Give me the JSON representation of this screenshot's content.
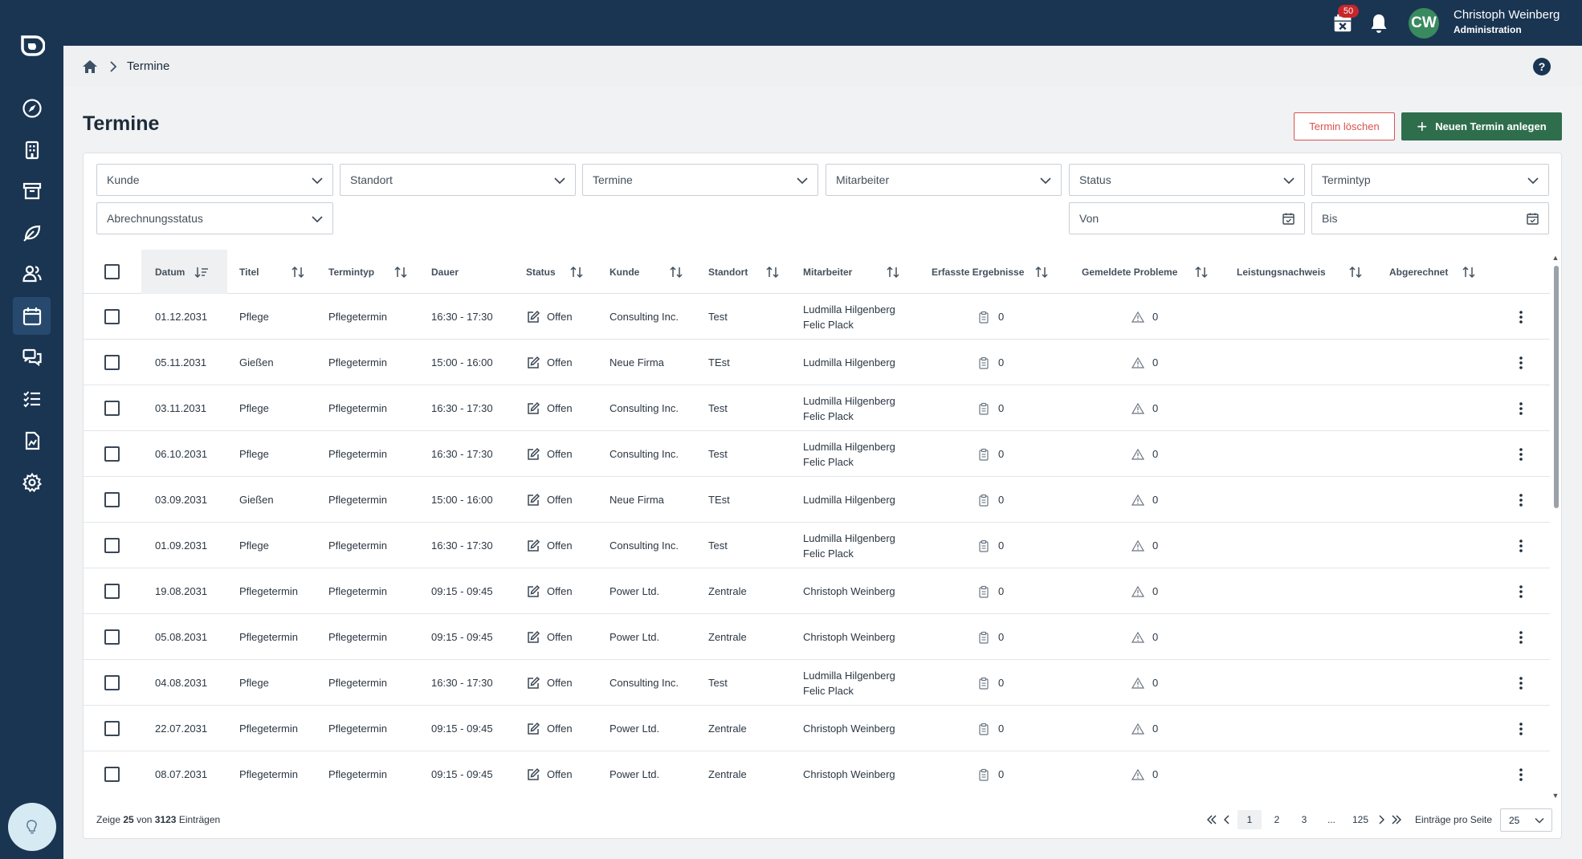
{
  "topbar": {
    "calendar_badge": "50",
    "user_initials": "CW",
    "user_name": "Christoph Weinberg",
    "user_role": "Administration"
  },
  "sidebar": {
    "items": [
      {
        "icon": "compass-icon"
      },
      {
        "icon": "building-icon"
      },
      {
        "icon": "archive-icon"
      },
      {
        "icon": "leaf-icon"
      },
      {
        "icon": "users-icon"
      },
      {
        "icon": "calendar-icon",
        "active": true
      },
      {
        "icon": "chat-icon"
      },
      {
        "icon": "checklist-icon"
      },
      {
        "icon": "document-chart-icon"
      },
      {
        "icon": "settings-icon"
      }
    ]
  },
  "breadcrumb": {
    "current": "Termine"
  },
  "page": {
    "title": "Termine",
    "delete_label": "Termin löschen",
    "new_label": "Neuen Termin anlegen",
    "help": "?"
  },
  "filters": {
    "kunde": "Kunde",
    "standort": "Standort",
    "termine": "Termine",
    "mitarbeiter": "Mitarbeiter",
    "status": "Status",
    "termintyp": "Termintyp",
    "abrechnungsstatus": "Abrechnungsstatus",
    "von": "Von",
    "bis": "Bis"
  },
  "table": {
    "columns": {
      "datum": "Datum",
      "titel": "Titel",
      "termintyp": "Termintyp",
      "dauer": "Dauer",
      "status": "Status",
      "kunde": "Kunde",
      "standort": "Standort",
      "mitarbeiter": "Mitarbeiter",
      "ergebnisse": "Erfasste Ergebnisse",
      "probleme": "Gemeldete Probleme",
      "leistungsnachweis": "Leistungsnachweis",
      "abgerechnet": "Abgerechnet"
    },
    "rows": [
      {
        "datum": "01.12.2031",
        "titel": "Pflege",
        "termintyp": "Pflegetermin",
        "dauer": "16:30 - 17:30",
        "status": "Offen",
        "kunde": "Consulting Inc.",
        "standort": "Test",
        "mitarbeiter1": "Ludmilla Hilgenberg",
        "mitarbeiter2": "Felic Plack",
        "ergebnisse": "0",
        "probleme": "0"
      },
      {
        "datum": "05.11.2031",
        "titel": "Gießen",
        "termintyp": "Pflegetermin",
        "dauer": "15:00 - 16:00",
        "status": "Offen",
        "kunde": "Neue Firma",
        "standort": "TEst",
        "mitarbeiter1": "Ludmilla Hilgenberg",
        "mitarbeiter2": "",
        "ergebnisse": "0",
        "probleme": "0"
      },
      {
        "datum": "03.11.2031",
        "titel": "Pflege",
        "termintyp": "Pflegetermin",
        "dauer": "16:30 - 17:30",
        "status": "Offen",
        "kunde": "Consulting Inc.",
        "standort": "Test",
        "mitarbeiter1": "Ludmilla Hilgenberg",
        "mitarbeiter2": "Felic Plack",
        "ergebnisse": "0",
        "probleme": "0"
      },
      {
        "datum": "06.10.2031",
        "titel": "Pflege",
        "termintyp": "Pflegetermin",
        "dauer": "16:30 - 17:30",
        "status": "Offen",
        "kunde": "Consulting Inc.",
        "standort": "Test",
        "mitarbeiter1": "Ludmilla Hilgenberg",
        "mitarbeiter2": "Felic Plack",
        "ergebnisse": "0",
        "probleme": "0"
      },
      {
        "datum": "03.09.2031",
        "titel": "Gießen",
        "termintyp": "Pflegetermin",
        "dauer": "15:00 - 16:00",
        "status": "Offen",
        "kunde": "Neue Firma",
        "standort": "TEst",
        "mitarbeiter1": "Ludmilla Hilgenberg",
        "mitarbeiter2": "",
        "ergebnisse": "0",
        "probleme": "0"
      },
      {
        "datum": "01.09.2031",
        "titel": "Pflege",
        "termintyp": "Pflegetermin",
        "dauer": "16:30 - 17:30",
        "status": "Offen",
        "kunde": "Consulting Inc.",
        "standort": "Test",
        "mitarbeiter1": "Ludmilla Hilgenberg",
        "mitarbeiter2": "Felic Plack",
        "ergebnisse": "0",
        "probleme": "0"
      },
      {
        "datum": "19.08.2031",
        "titel": "Pflegetermin",
        "termintyp": "Pflegetermin",
        "dauer": "09:15 - 09:45",
        "status": "Offen",
        "kunde": "Power Ltd.",
        "standort": "Zentrale",
        "mitarbeiter1": "Christoph Weinberg",
        "mitarbeiter2": "",
        "ergebnisse": "0",
        "probleme": "0"
      },
      {
        "datum": "05.08.2031",
        "titel": "Pflegetermin",
        "termintyp": "Pflegetermin",
        "dauer": "09:15 - 09:45",
        "status": "Offen",
        "kunde": "Power Ltd.",
        "standort": "Zentrale",
        "mitarbeiter1": "Christoph Weinberg",
        "mitarbeiter2": "",
        "ergebnisse": "0",
        "probleme": "0"
      },
      {
        "datum": "04.08.2031",
        "titel": "Pflege",
        "termintyp": "Pflegetermin",
        "dauer": "16:30 - 17:30",
        "status": "Offen",
        "kunde": "Consulting Inc.",
        "standort": "Test",
        "mitarbeiter1": "Ludmilla Hilgenberg",
        "mitarbeiter2": "Felic Plack",
        "ergebnisse": "0",
        "probleme": "0"
      },
      {
        "datum": "22.07.2031",
        "titel": "Pflegetermin",
        "termintyp": "Pflegetermin",
        "dauer": "09:15 - 09:45",
        "status": "Offen",
        "kunde": "Power Ltd.",
        "standort": "Zentrale",
        "mitarbeiter1": "Christoph Weinberg",
        "mitarbeiter2": "",
        "ergebnisse": "0",
        "probleme": "0"
      },
      {
        "datum": "08.07.2031",
        "titel": "Pflegetermin",
        "termintyp": "Pflegetermin",
        "dauer": "09:15 - 09:45",
        "status": "Offen",
        "kunde": "Power Ltd.",
        "standort": "Zentrale",
        "mitarbeiter1": "Christoph Weinberg",
        "mitarbeiter2": "",
        "ergebnisse": "0",
        "probleme": "0"
      }
    ]
  },
  "footer": {
    "info_prefix": "Zeige",
    "info_shown": "25",
    "info_mid": "von",
    "info_total": "3123",
    "info_suffix": "Einträgen",
    "pages": [
      "1",
      "2",
      "3",
      "...",
      "125"
    ],
    "perpage_label": "Einträge pro Seite",
    "perpage_value": "25"
  },
  "colors": {
    "sidebar": "#1a3552",
    "primary_green": "#2f6e4d",
    "danger": "#d9534f",
    "badge": "#c8262b"
  }
}
